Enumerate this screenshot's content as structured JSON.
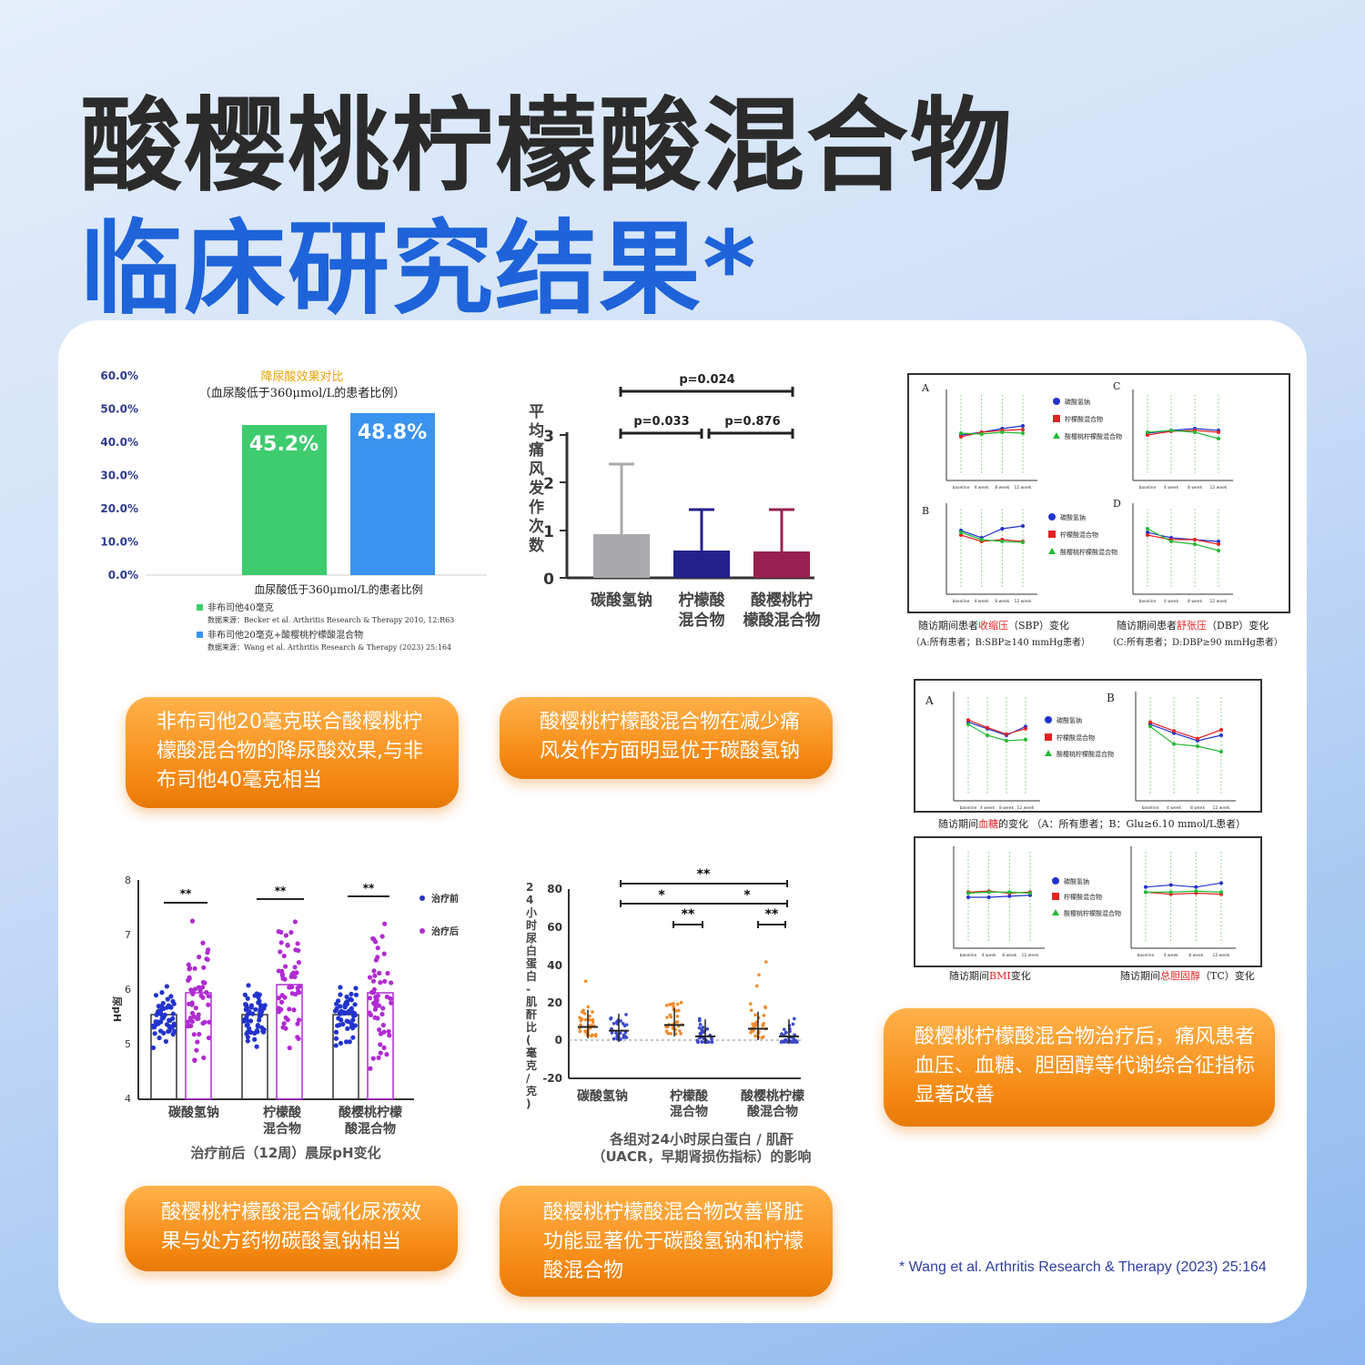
{
  "header": {
    "title_line1": "酸樱桃柠檬酸混合物",
    "title_line2": "临床研究结果*"
  },
  "charts": {
    "uric": {
      "title": "降尿酸效果对比",
      "subtitle": "（血尿酸低于360μmol/L的患者比例）",
      "xlabel": "血尿酸低于360μmol/L的患者比例",
      "yticks": [
        "60.0%",
        "50.0%",
        "40.0%",
        "30.0%",
        "20.0%",
        "10.0%",
        "0.0%"
      ],
      "bars": [
        {
          "label": "45.2%",
          "color": "#3dcc6e"
        },
        {
          "label": "48.8%",
          "color": "#3a93ee"
        }
      ],
      "legend": [
        {
          "name": "非布司他40毫克",
          "source": "数据来源：Becker et al. Arthritis Research & Therapy 2010, 12:R63",
          "color": "#3dcc6e"
        },
        {
          "name": "非布司他20毫克+酸樱桃柠檬酸混合物",
          "source": "数据来源：Wang et al. Arthritis Research & Therapy (2023) 25:164",
          "color": "#3a93ee"
        }
      ]
    },
    "attack": {
      "ylabel": "平均痛风发作次数",
      "yticks": [
        "3",
        "2",
        "1",
        "0"
      ],
      "p_top": "p=0.024",
      "p_left": "p=0.033",
      "p_right": "p=0.876",
      "cats": [
        [
          "碳酸氢钠"
        ],
        [
          "柠檬酸",
          "混合物"
        ],
        [
          "酸樱桃柠",
          "檬酸混合物"
        ]
      ]
    },
    "ph": {
      "ylabel": "尿pH",
      "yticks": [
        "8",
        "7",
        "6",
        "5",
        "4"
      ],
      "sig": "**",
      "legend": [
        "治疗前",
        "治疗后"
      ],
      "cats": [
        [
          "碳酸氢钠"
        ],
        [
          "柠檬酸",
          "混合物"
        ],
        [
          "酸樱桃柠檬",
          "酸混合物"
        ]
      ],
      "caption": "治疗前后（12周）晨尿pH变化"
    },
    "uacr": {
      "ylabel": "24小时尿白蛋白-肌酐比(毫克/克)",
      "yticks": [
        "80",
        "60",
        "40",
        "20",
        "0",
        "-20"
      ],
      "sig_double": "**",
      "sig_single": "*",
      "cats": [
        [
          "碳酸氢钠"
        ],
        [
          "柠檬酸",
          "混合物"
        ],
        [
          "酸樱桃柠檬",
          "酸混合物"
        ]
      ],
      "caption1": "各组对24小时尿白蛋白 / 肌酐",
      "caption2": "（UACR，早期肾损伤指标）的影响"
    },
    "bp": {
      "panels": [
        "A",
        "C",
        "B",
        "D"
      ],
      "legend": [
        "碳酸氢钠",
        "柠檬酸混合物",
        "酸樱桃柠檬酸混合物"
      ],
      "xticks": [
        "baseline",
        "4 week",
        "8 week",
        "12 week"
      ],
      "caption_l_pre": "随访期间患者",
      "caption_l_hl": "收缩压",
      "caption_l_post": "（SBP）变化",
      "caption_r_pre": "随访期间患者",
      "caption_r_hl": "舒张压",
      "caption_r_post": "（DBP）变化",
      "sub_l": "（A:所有患者；B:SBP≥140 mmHg患者）",
      "sub_r": "（C:所有患者；D:DBP≥90 mmHg患者）"
    },
    "glu": {
      "panels": [
        "A",
        "B"
      ],
      "caption_pre": "随访期间",
      "caption_hl": "血糖",
      "caption_post": "的变化  （A：所有患者；B：Glu≥6.10 mmol/L患者）"
    },
    "bmi": {
      "caption_l_pre": "随访期间",
      "caption_l_hl": "BMI",
      "caption_l_post": "变化",
      "caption_r_pre": "随访期间",
      "caption_r_hl": "总胆固醇",
      "caption_r_post": "（TC）变化"
    }
  },
  "chart_data": [
    {
      "type": "bar",
      "title": "降尿酸效果对比",
      "categories": [
        "非布司他40毫克",
        "非布司他20毫克+酸樱桃柠檬酸混合物"
      ],
      "values": [
        45.2,
        48.8
      ],
      "ylim": [
        0,
        60
      ],
      "xlabel": "血尿酸低于360μmol/L的患者比例",
      "ylabel": ""
    },
    {
      "type": "bar",
      "categories": [
        "碳酸氢钠",
        "柠檬酸混合物",
        "酸樱桃柠檬酸混合物"
      ],
      "values": [
        0.95,
        0.6,
        0.58
      ],
      "errors": [
        1.45,
        0.85,
        0.87
      ],
      "ylim": [
        0,
        3
      ],
      "ylabel": "平均痛风发作次数"
    },
    {
      "type": "bar",
      "categories": [
        "碳酸氢钠",
        "柠檬酸混合物",
        "酸樱桃柠檬酸混合物"
      ],
      "series": [
        {
          "name": "治疗前",
          "values": [
            5.55,
            5.55,
            5.55
          ]
        },
        {
          "name": "治疗后",
          "values": [
            5.95,
            6.1,
            5.95
          ]
        }
      ],
      "ylim": [
        4,
        8
      ],
      "ylabel": "尿pH"
    },
    {
      "type": "scatter",
      "categories": [
        "碳酸氢钠",
        "柠檬酸混合物",
        "酸樱桃柠檬酸混合物"
      ],
      "series": [
        {
          "name": "治疗前",
          "values": [
            7,
            8,
            6
          ]
        },
        {
          "name": "治疗后",
          "values": [
            5,
            2,
            2
          ]
        }
      ],
      "ylim": [
        -20,
        80
      ],
      "ylabel": "24小时尿白蛋白-肌酐比(毫克/克)"
    }
  ],
  "pills": {
    "p1": [
      "非布司他20毫克联合酸樱桃柠",
      "檬酸混合物的降尿酸效果,与非",
      "布司他40毫克相当"
    ],
    "p2": [
      "酸樱桃柠檬酸混合物在减少痛",
      "风发作方面明显优于碳酸氢钠"
    ],
    "p3": [
      "酸樱桃柠檬酸混合物治疗后，痛风患者",
      "血压、血糖、胆固醇等代谢综合征指标",
      "显著改善"
    ],
    "p4": [
      "酸樱桃柠檬酸混合碱化尿液效",
      "果与处方药物碳酸氢钠相当"
    ],
    "p5": [
      "酸樱桃柠檬酸混合物改善肾脏",
      "功能显著优于碳酸氢钠和柠檬",
      "酸混合物"
    ]
  },
  "footnote": "* Wang et al. Arthritis Research & Therapy (2023) 25:164"
}
